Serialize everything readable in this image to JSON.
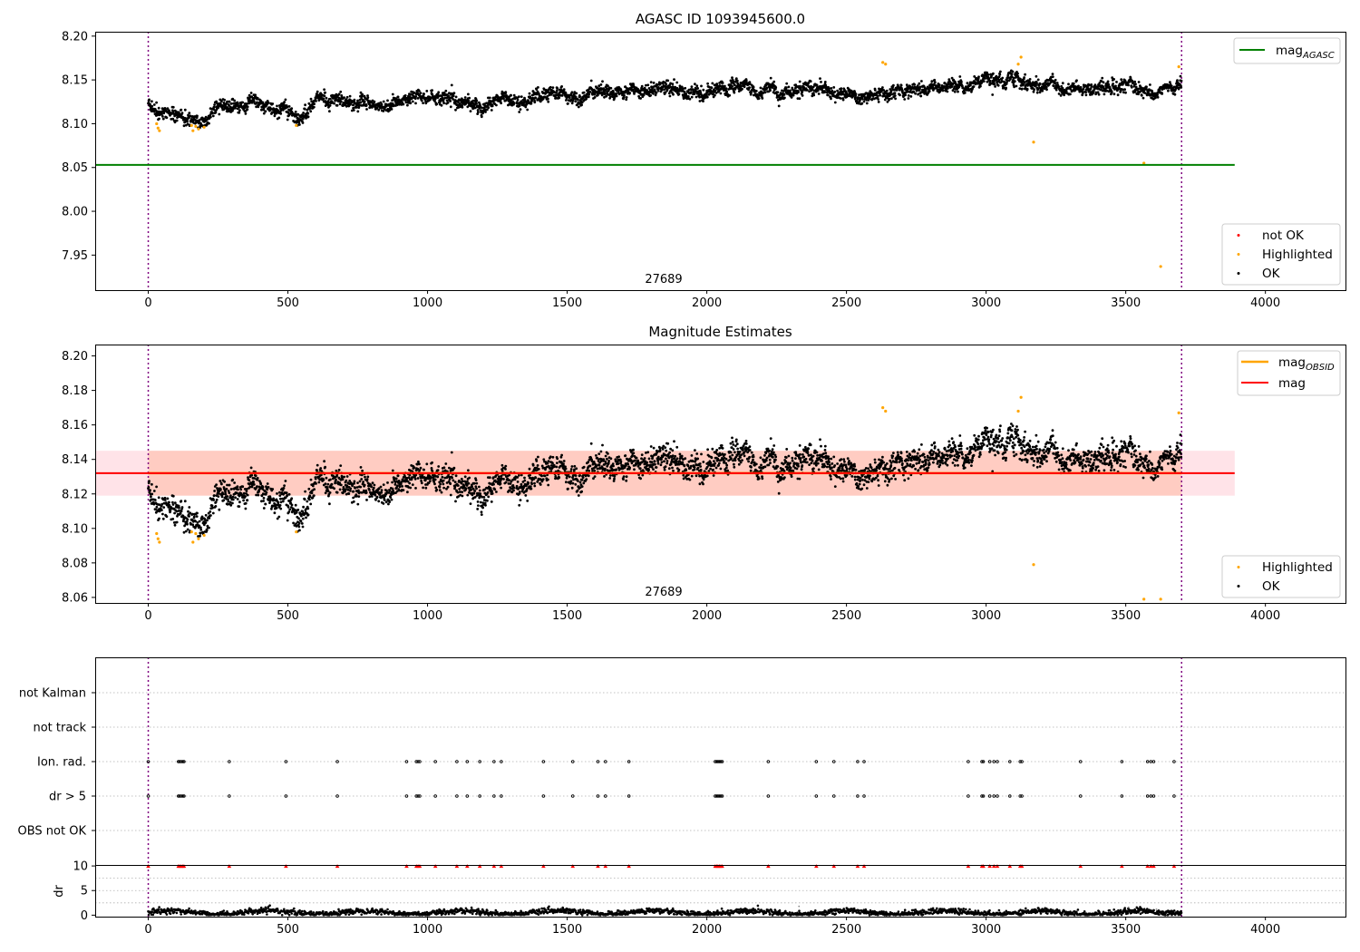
{
  "figure": {
    "panel1_title": "AGASC ID 1093945600.0",
    "panel2_title": "Magnitude Estimates",
    "obsid_label": "27689",
    "colors": {
      "ok": "#000000",
      "highlighted": "#ffa500",
      "not_ok": "#ff0000",
      "mag_agasc": "#008000",
      "mag_obsid": "#ffa500",
      "mag": "#ff0000",
      "band": "#ffc0cb",
      "band_overlap": "#ffa07a",
      "obs_boundary": "#800080",
      "grid": "#b0b0b0"
    }
  },
  "legend1": {
    "mag_agasc": "mag",
    "mag_agasc_sub": "AGASC",
    "not_ok": "not OK",
    "highlighted": "Highlighted",
    "ok": "OK"
  },
  "legend2": {
    "mag_obsid": "mag",
    "mag_obsid_sub": "OBSID",
    "mag": "mag",
    "highlighted": "Highlighted",
    "ok": "OK"
  },
  "chart_data": [
    {
      "type": "scatter",
      "title": "AGASC ID 1093945600.0",
      "xlim": [
        -190,
        4290
      ],
      "ylim": [
        7.91,
        8.205
      ],
      "x_ticks": [
        0,
        500,
        1000,
        1500,
        2000,
        2500,
        3000,
        3500,
        4000
      ],
      "y_ticks": [
        "8.20",
        "8.15",
        "8.10",
        "8.05",
        "8.00",
        "7.95"
      ],
      "legend_placement": [
        "top-right",
        "bottom-right"
      ],
      "mag_agasc": 8.053,
      "mag_agasc_x_range": [
        -190,
        3890
      ],
      "obs_boundaries": [
        0,
        3700
      ],
      "annotation": "27689",
      "ok_trend": [
        [
          0,
          8.122
        ],
        [
          60,
          8.112
        ],
        [
          150,
          8.105
        ],
        [
          200,
          8.104
        ],
        [
          260,
          8.12
        ],
        [
          400,
          8.124
        ],
        [
          500,
          8.112
        ],
        [
          540,
          8.104
        ],
        [
          600,
          8.128
        ],
        [
          700,
          8.126
        ],
        [
          850,
          8.12
        ],
        [
          950,
          8.13
        ],
        [
          1050,
          8.13
        ],
        [
          1150,
          8.118
        ],
        [
          1250,
          8.13
        ],
        [
          1350,
          8.128
        ],
        [
          1450,
          8.132
        ],
        [
          1550,
          8.125
        ],
        [
          1620,
          8.142
        ],
        [
          1700,
          8.135
        ],
        [
          1800,
          8.14
        ],
        [
          2000,
          8.137
        ],
        [
          2050,
          8.145
        ],
        [
          2200,
          8.135
        ],
        [
          2400,
          8.14
        ],
        [
          2500,
          8.132
        ],
        [
          2620,
          8.133
        ],
        [
          2700,
          8.14
        ],
        [
          2900,
          8.142
        ],
        [
          3000,
          8.148
        ],
        [
          3100,
          8.152
        ],
        [
          3200,
          8.142
        ],
        [
          3350,
          8.14
        ],
        [
          3450,
          8.14
        ],
        [
          3500,
          8.15
        ],
        [
          3550,
          8.136
        ],
        [
          3640,
          8.14
        ],
        [
          3700,
          8.145
        ]
      ],
      "highlighted_points": [
        [
          30,
          8.1
        ],
        [
          35,
          8.095
        ],
        [
          40,
          8.092
        ],
        [
          155,
          8.098
        ],
        [
          160,
          8.092
        ],
        [
          170,
          8.097
        ],
        [
          180,
          8.094
        ],
        [
          200,
          8.096
        ],
        [
          530,
          8.098
        ],
        [
          2630,
          8.17
        ],
        [
          2640,
          8.168
        ],
        [
          3115,
          8.168
        ],
        [
          3125,
          8.176
        ],
        [
          3170,
          8.079
        ],
        [
          3565,
          8.055
        ],
        [
          3625,
          7.937
        ],
        [
          3690,
          8.165
        ]
      ],
      "not_ok_points": []
    },
    {
      "type": "scatter",
      "title": "Magnitude Estimates",
      "xlim": [
        -190,
        4290
      ],
      "ylim": [
        8.0568,
        8.2066
      ],
      "x_ticks": [
        0,
        500,
        1000,
        1500,
        2000,
        2500,
        3000,
        3500,
        4000
      ],
      "y_ticks": [
        "8.20",
        "8.18",
        "8.16",
        "8.14",
        "8.12",
        "8.10",
        "8.08",
        "8.06"
      ],
      "legend_placement": [
        "top-right",
        "bottom-right"
      ],
      "mag": 8.132,
      "mag_band": [
        8.119,
        8.145
      ],
      "mag_obsid": 8.132,
      "mag_obsid_band": [
        8.119,
        8.145
      ],
      "obsid_x_range": [
        0,
        3700
      ],
      "mag_x_range": [
        -190,
        3890
      ],
      "obs_boundaries": [
        0,
        3700
      ],
      "annotation": "27689",
      "highlighted_points": [
        [
          30,
          8.097
        ],
        [
          35,
          8.094
        ],
        [
          40,
          8.092
        ],
        [
          155,
          8.098
        ],
        [
          160,
          8.092
        ],
        [
          170,
          8.097
        ],
        [
          180,
          8.094
        ],
        [
          200,
          8.096
        ],
        [
          530,
          8.098
        ],
        [
          2630,
          8.17
        ],
        [
          2640,
          8.168
        ],
        [
          3115,
          8.168
        ],
        [
          3125,
          8.176
        ],
        [
          3170,
          8.079
        ],
        [
          3565,
          8.059
        ],
        [
          3625,
          8.059
        ],
        [
          3690,
          8.167
        ]
      ]
    },
    {
      "type": "scatter",
      "title": "",
      "xlim": [
        -190,
        4290
      ],
      "x_ticks": [
        0,
        500,
        1000,
        1500,
        2000,
        2500,
        3000,
        3500,
        4000
      ],
      "flag_rows": [
        "not Kalman",
        "not track",
        "Ion. rad.",
        "dr > 5",
        "OBS not OK"
      ],
      "flag_x": [
        0,
        108,
        112,
        118,
        124,
        128,
        290,
        493,
        677,
        925,
        960,
        966,
        972,
        1028,
        1105,
        1142,
        1187,
        1238,
        1264,
        1415,
        1520,
        1610,
        1637,
        1721,
        2030,
        2035,
        2040,
        2045,
        2050,
        2055,
        2220,
        2392,
        2455,
        2540,
        2563,
        2936,
        2985,
        2990,
        3013,
        3028,
        3040,
        3085,
        3122,
        3128,
        3338,
        3486,
        3578,
        3590,
        3600,
        3673
      ],
      "dr_ylim": [
        -0.3,
        10.2
      ],
      "dr_y_ticks": [
        0,
        5,
        10
      ],
      "dr_ylabel": "dr",
      "dr_clip": 10,
      "dr_outlier_points": [
        [
          2330,
          1.8
        ],
        [
          3510,
          1.6
        ],
        [
          3610,
          1.2
        ]
      ]
    }
  ]
}
